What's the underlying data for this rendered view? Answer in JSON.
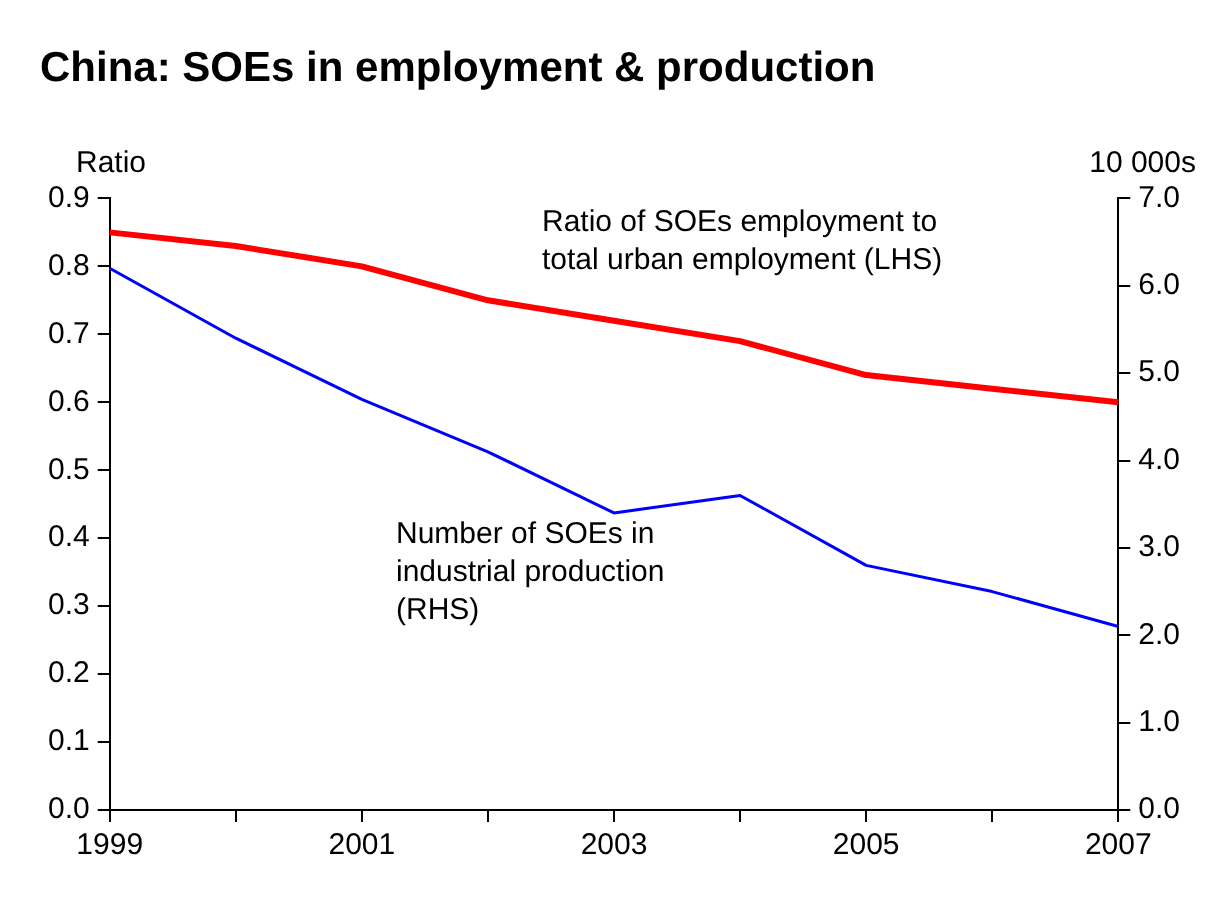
{
  "chart_data": {
    "type": "line",
    "title": "China: SOEs in employment & production",
    "ylabel": "Ratio",
    "y2label": "10 000s",
    "categories": [
      "1999",
      null,
      "2001",
      null,
      "2003",
      null,
      "2005",
      null,
      "2007"
    ],
    "series": [
      {
        "name": "Ratio of SOEs employment to total urban employment (LHS)",
        "color": "#ff0000",
        "values": [
          0.85,
          0.83,
          0.8,
          0.75,
          0.72,
          0.69,
          0.64,
          0.62,
          0.6
        ]
      },
      {
        "name": "Number of SOEs in industrial production (RHS)",
        "color": "#0000ff",
        "axis": "y2",
        "values": [
          6.2,
          5.4,
          4.7,
          4.1,
          3.4,
          3.6,
          2.8,
          2.5,
          2.1
        ]
      }
    ],
    "ylim": [
      0,
      0.9
    ],
    "yticks": [
      {
        "value": 0,
        "label": "0.0"
      },
      0.1,
      0.2,
      0.3,
      0.4,
      0.5,
      0.6,
      0.7,
      0.8,
      0.9
    ],
    "y2lim": [
      0,
      7
    ],
    "y2ticks": [
      {
        "value": 0,
        "label": "0.0"
      },
      {
        "value": 1,
        "label": "1.0"
      },
      {
        "value": 2,
        "label": "2.0"
      },
      {
        "value": 3,
        "label": "3.0"
      },
      {
        "value": 4,
        "label": "4.0"
      },
      {
        "value": 5,
        "label": "5.0"
      },
      {
        "value": 6,
        "label": "6.0"
      },
      {
        "value": 7,
        "label": "7.0"
      }
    ],
    "grid": false,
    "legend": false,
    "marker": "none",
    "line_style": "solid"
  }
}
